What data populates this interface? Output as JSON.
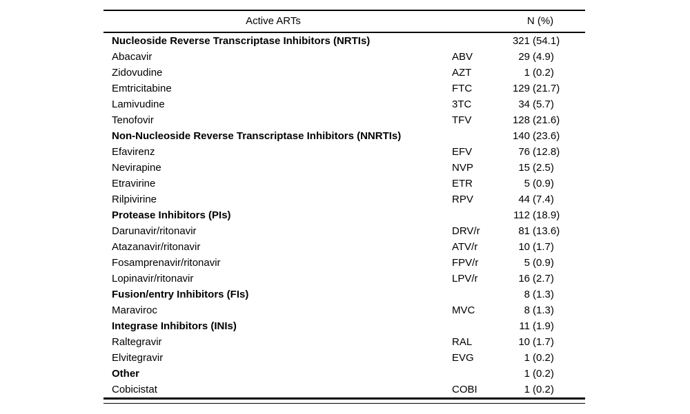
{
  "colors": {
    "background": "#ffffff",
    "text": "#000000",
    "rule": "#000000"
  },
  "table": {
    "header": {
      "col1": "Active ARTs",
      "col2": "N (%)"
    },
    "rows": [
      {
        "name": "Nucleoside Reverse Transcriptase Inhibitors (NRTIs)",
        "abbr": "",
        "n": "321",
        "pct": "(54.1)",
        "bold": true
      },
      {
        "name": "Abacavir",
        "abbr": "ABV",
        "n": "29",
        "pct": "(4.9)",
        "bold": false
      },
      {
        "name": "Zidovudine",
        "abbr": "AZT",
        "n": "1",
        "pct": "(0.2)",
        "bold": false
      },
      {
        "name": "Emtricitabine",
        "abbr": "FTC",
        "n": "129",
        "pct": "(21.7)",
        "bold": false
      },
      {
        "name": "Lamivudine",
        "abbr": "3TC",
        "n": "34",
        "pct": "(5.7)",
        "bold": false
      },
      {
        "name": "Tenofovir",
        "abbr": "TFV",
        "n": "128",
        "pct": "(21.6)",
        "bold": false
      },
      {
        "name": "Non-Nucleoside Reverse Transcriptase Inhibitors (NNRTIs)",
        "abbr": "",
        "n": "140",
        "pct": "(23.6)",
        "bold": true
      },
      {
        "name": "Efavirenz",
        "abbr": "EFV",
        "n": "76",
        "pct": "(12.8)",
        "bold": false
      },
      {
        "name": "Nevirapine",
        "abbr": "NVP",
        "n": "15",
        "pct": "(2.5)",
        "bold": false
      },
      {
        "name": "Etravirine",
        "abbr": "ETR",
        "n": "5",
        "pct": "(0.9)",
        "bold": false
      },
      {
        "name": "Rilpivirine",
        "abbr": "RPV",
        "n": "44",
        "pct": "(7.4)",
        "bold": false
      },
      {
        "name": "Protease Inhibitors (PIs)",
        "abbr": "",
        "n": "112",
        "pct": "(18.9)",
        "bold": true
      },
      {
        "name": "Darunavir/ritonavir",
        "abbr": "DRV/r",
        "n": "81",
        "pct": "(13.6)",
        "bold": false
      },
      {
        "name": "Atazanavir/ritonavir",
        "abbr": "ATV/r",
        "n": "10",
        "pct": "(1.7)",
        "bold": false
      },
      {
        "name": "Fosamprenavir/ritonavir",
        "abbr": "FPV/r",
        "n": "5",
        "pct": "(0.9)",
        "bold": false
      },
      {
        "name": "Lopinavir/ritonavir",
        "abbr": "LPV/r",
        "n": "16",
        "pct": "(2.7)",
        "bold": false
      },
      {
        "name": "Fusion/entry Inhibitors (FIs)",
        "abbr": "",
        "n": "8",
        "pct": "(1.3)",
        "bold": true
      },
      {
        "name": "Maraviroc",
        "abbr": "MVC",
        "n": "8",
        "pct": "(1.3)",
        "bold": false
      },
      {
        "name": "Integrase Inhibitors (INIs)",
        "abbr": "",
        "n": "11",
        "pct": "(1.9)",
        "bold": true
      },
      {
        "name": "Raltegravir",
        "abbr": "RAL",
        "n": "10",
        "pct": "(1.7)",
        "bold": false
      },
      {
        "name": "Elvitegravir",
        "abbr": "EVG",
        "n": "1",
        "pct": "(0.2)",
        "bold": false
      },
      {
        "name": "Other",
        "abbr": "",
        "n": "1",
        "pct": "(0.2)",
        "bold": true
      },
      {
        "name": "Cobicistat",
        "abbr": "COBI",
        "n": "1",
        "pct": "(0.2)",
        "bold": false
      }
    ]
  }
}
